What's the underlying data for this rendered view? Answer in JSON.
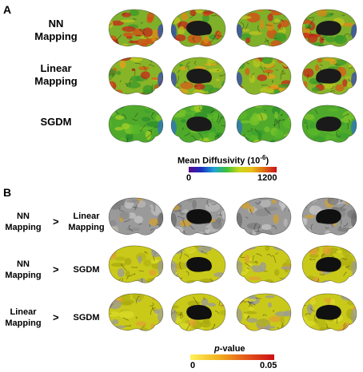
{
  "panelA": {
    "letter": "A",
    "rows": [
      {
        "line1": "NN",
        "line2": "Mapping",
        "scheme": "nn"
      },
      {
        "line1": "Linear",
        "line2": "Mapping",
        "scheme": "linear"
      },
      {
        "line1": "SGDM",
        "line2": "",
        "scheme": "sgdm"
      }
    ],
    "colorbar": {
      "title": "Mean Diffusivity (10",
      "title_sup": "-6",
      "title_end": ")",
      "min": "0",
      "max": "1200",
      "colors": [
        "#5b0a8c",
        "#1a2dbf",
        "#1fa3d8",
        "#3cbf3c",
        "#c8d81c",
        "#e8c01a",
        "#e06a12",
        "#c8101a"
      ]
    }
  },
  "panelB": {
    "letter": "B",
    "rows": [
      {
        "left1": "NN",
        "left2": "Mapping",
        "op": ">",
        "right1": "Linear",
        "right2": "Mapping",
        "scheme": "gray"
      },
      {
        "left1": "NN",
        "left2": "Mapping",
        "op": ">",
        "right1": "SGDM",
        "right2": "",
        "scheme": "yellow"
      },
      {
        "left1": "Linear",
        "left2": "Mapping",
        "op": ">",
        "right1": "SGDM",
        "right2": "",
        "scheme": "yellow"
      }
    ],
    "colorbar": {
      "title_italic": "p",
      "title_rest": "-value",
      "min": "0",
      "max": "0.05",
      "colors": [
        "#fff25a",
        "#f2b21f",
        "#e4571a",
        "#cc1016"
      ]
    }
  },
  "views": [
    "left-lateral",
    "left-medial",
    "right-lateral",
    "right-medial"
  ]
}
